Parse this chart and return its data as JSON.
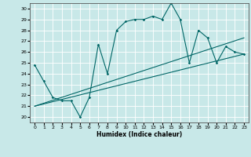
{
  "xlabel": "Humidex (Indice chaleur)",
  "bg_color": "#c8e8e8",
  "grid_color": "#ffffff",
  "line_color": "#006666",
  "xlim": [
    -0.5,
    23.5
  ],
  "ylim": [
    19.5,
    30.5
  ],
  "xticks": [
    0,
    1,
    2,
    3,
    4,
    5,
    6,
    7,
    8,
    9,
    10,
    11,
    12,
    13,
    14,
    15,
    16,
    17,
    18,
    19,
    20,
    21,
    22,
    23
  ],
  "yticks": [
    20,
    21,
    22,
    23,
    24,
    25,
    26,
    27,
    28,
    29,
    30
  ],
  "line1_x": [
    0,
    1,
    2,
    3,
    4,
    5,
    6,
    7,
    8,
    9,
    10,
    11,
    12,
    13,
    14,
    15,
    16,
    17,
    18,
    19,
    20,
    21,
    22,
    23
  ],
  "line1_y": [
    24.8,
    23.3,
    21.8,
    21.5,
    21.5,
    20.0,
    21.8,
    26.7,
    24.0,
    28.0,
    28.8,
    29.0,
    29.0,
    29.3,
    29.0,
    30.5,
    29.0,
    25.0,
    28.0,
    27.3,
    25.0,
    26.5,
    26.0,
    25.8
  ],
  "line2_x": [
    0,
    23
  ],
  "line2_y": [
    21.0,
    27.3
  ],
  "line3_x": [
    0,
    23
  ],
  "line3_y": [
    21.0,
    25.8
  ]
}
